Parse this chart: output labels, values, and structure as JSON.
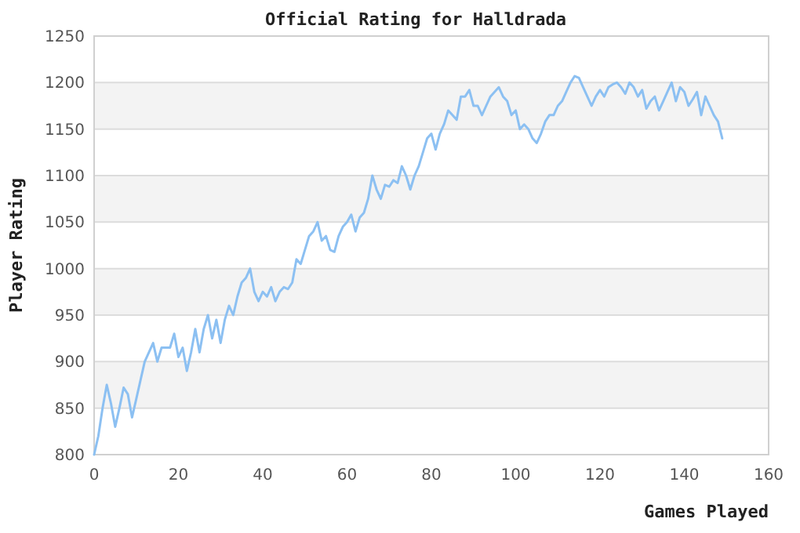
{
  "chart_data": {
    "type": "line",
    "title": "Official Rating for Halldrada",
    "xlabel": "Games Played",
    "ylabel": "Player Rating",
    "xlim": [
      0,
      160
    ],
    "xticks": [
      0,
      20,
      40,
      60,
      80,
      100,
      120,
      140,
      160
    ],
    "ylim": [
      800,
      1250
    ],
    "yticks": [
      800,
      850,
      900,
      950,
      1000,
      1050,
      1100,
      1150,
      1200,
      1250
    ],
    "grid": "y",
    "marker": "none",
    "line_style": "solid",
    "series": [
      {
        "color": "#8cc0f2",
        "x": [
          0,
          1,
          2,
          3,
          4,
          5,
          6,
          7,
          8,
          9,
          10,
          11,
          12,
          14,
          15,
          16,
          18,
          19,
          20,
          21,
          22,
          23,
          24,
          25,
          26,
          27,
          28,
          29,
          30,
          31,
          32,
          33,
          34,
          35,
          36,
          37,
          38,
          39,
          40,
          41,
          42,
          43,
          44,
          45,
          46,
          47,
          48,
          49,
          50,
          51,
          52,
          53,
          54,
          55,
          56,
          57,
          58,
          59,
          60,
          61,
          62,
          63,
          64,
          65,
          66,
          67,
          68,
          69,
          70,
          71,
          72,
          73,
          74,
          75,
          76,
          77,
          78,
          79,
          80,
          81,
          82,
          83,
          84,
          85,
          86,
          87,
          88,
          89,
          90,
          91,
          92,
          93,
          94,
          95,
          96,
          97,
          98,
          99,
          100,
          101,
          102,
          103,
          104,
          105,
          106,
          107,
          108,
          109,
          110,
          111,
          112,
          113,
          114,
          115,
          116,
          117,
          118,
          119,
          120,
          121,
          122,
          123,
          124,
          125,
          126,
          127,
          128,
          129,
          130,
          131,
          132,
          133,
          134,
          135,
          136,
          137,
          138,
          139,
          140,
          141,
          142,
          143,
          144,
          145,
          146,
          147,
          148,
          149
        ],
        "values": [
          800,
          820,
          850,
          875,
          855,
          830,
          850,
          872,
          865,
          840,
          860,
          880,
          900,
          920,
          900,
          915,
          915,
          930,
          905,
          915,
          890,
          910,
          935,
          910,
          935,
          950,
          925,
          945,
          920,
          945,
          960,
          950,
          970,
          985,
          990,
          1000,
          975,
          965,
          975,
          970,
          980,
          965,
          975,
          980,
          978,
          985,
          1010,
          1005,
          1020,
          1035,
          1040,
          1050,
          1030,
          1035,
          1020,
          1018,
          1035,
          1045,
          1050,
          1058,
          1040,
          1055,
          1060,
          1075,
          1100,
          1085,
          1075,
          1090,
          1088,
          1095,
          1092,
          1110,
          1100,
          1085,
          1100,
          1110,
          1125,
          1140,
          1145,
          1128,
          1145,
          1155,
          1170,
          1165,
          1160,
          1185,
          1185,
          1192,
          1175,
          1175,
          1165,
          1175,
          1185,
          1190,
          1195,
          1185,
          1180,
          1165,
          1170,
          1150,
          1155,
          1150,
          1140,
          1135,
          1145,
          1158,
          1165,
          1165,
          1175,
          1180,
          1190,
          1200,
          1207,
          1205,
          1195,
          1185,
          1175,
          1185,
          1192,
          1185,
          1195,
          1198,
          1200,
          1195,
          1188,
          1200,
          1195,
          1185,
          1192,
          1172,
          1180,
          1185,
          1170,
          1180,
          1190,
          1200,
          1180,
          1195,
          1190,
          1175,
          1182,
          1190,
          1165,
          1185,
          1175,
          1165,
          1158,
          1140
        ]
      }
    ]
  }
}
